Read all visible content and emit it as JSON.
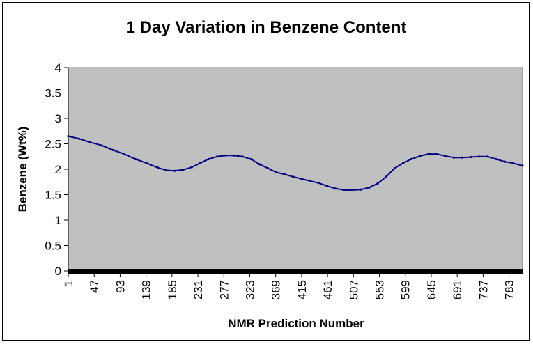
{
  "chart_data": {
    "type": "line",
    "title": "1 Day Variation in Benzene Content",
    "xlabel": "NMR Prediction Number",
    "ylabel": "Benzene (Wt%)",
    "ylim": [
      0,
      4
    ],
    "yticks": [
      "0",
      "0.5",
      "1",
      "1.5",
      "2",
      "2.5",
      "3",
      "3.5",
      "4"
    ],
    "xlim": [
      1,
      807
    ],
    "xticks": [
      "1",
      "47",
      "93",
      "139",
      "185",
      "231",
      "277",
      "323",
      "369",
      "415",
      "461",
      "507",
      "553",
      "599",
      "645",
      "691",
      "737",
      "783"
    ],
    "plot_background": "#C0C0C0",
    "line_color": "#000080",
    "grid": false,
    "legend": "none",
    "series": [
      {
        "x": [
          1,
          20,
          40,
          60,
          80,
          100,
          120,
          140,
          160,
          175,
          190,
          205,
          220,
          235,
          250,
          265,
          280,
          295,
          310,
          325,
          340,
          355,
          370,
          385,
          400,
          415,
          430,
          445,
          460,
          475,
          490,
          505,
          520,
          535,
          550,
          565,
          580,
          595,
          610,
          625,
          640,
          655,
          670,
          685,
          700,
          715,
          730,
          745,
          760,
          775,
          790,
          807
        ],
        "y": [
          2.65,
          2.6,
          2.53,
          2.47,
          2.38,
          2.3,
          2.2,
          2.12,
          2.03,
          1.98,
          1.97,
          1.99,
          2.04,
          2.12,
          2.2,
          2.25,
          2.27,
          2.27,
          2.25,
          2.2,
          2.1,
          2.02,
          1.94,
          1.9,
          1.85,
          1.81,
          1.77,
          1.73,
          1.67,
          1.62,
          1.59,
          1.59,
          1.6,
          1.64,
          1.72,
          1.85,
          2.02,
          2.12,
          2.2,
          2.26,
          2.3,
          2.3,
          2.26,
          2.23,
          2.23,
          2.24,
          2.25,
          2.25,
          2.2,
          2.15,
          2.12,
          2.07
        ]
      }
    ]
  }
}
